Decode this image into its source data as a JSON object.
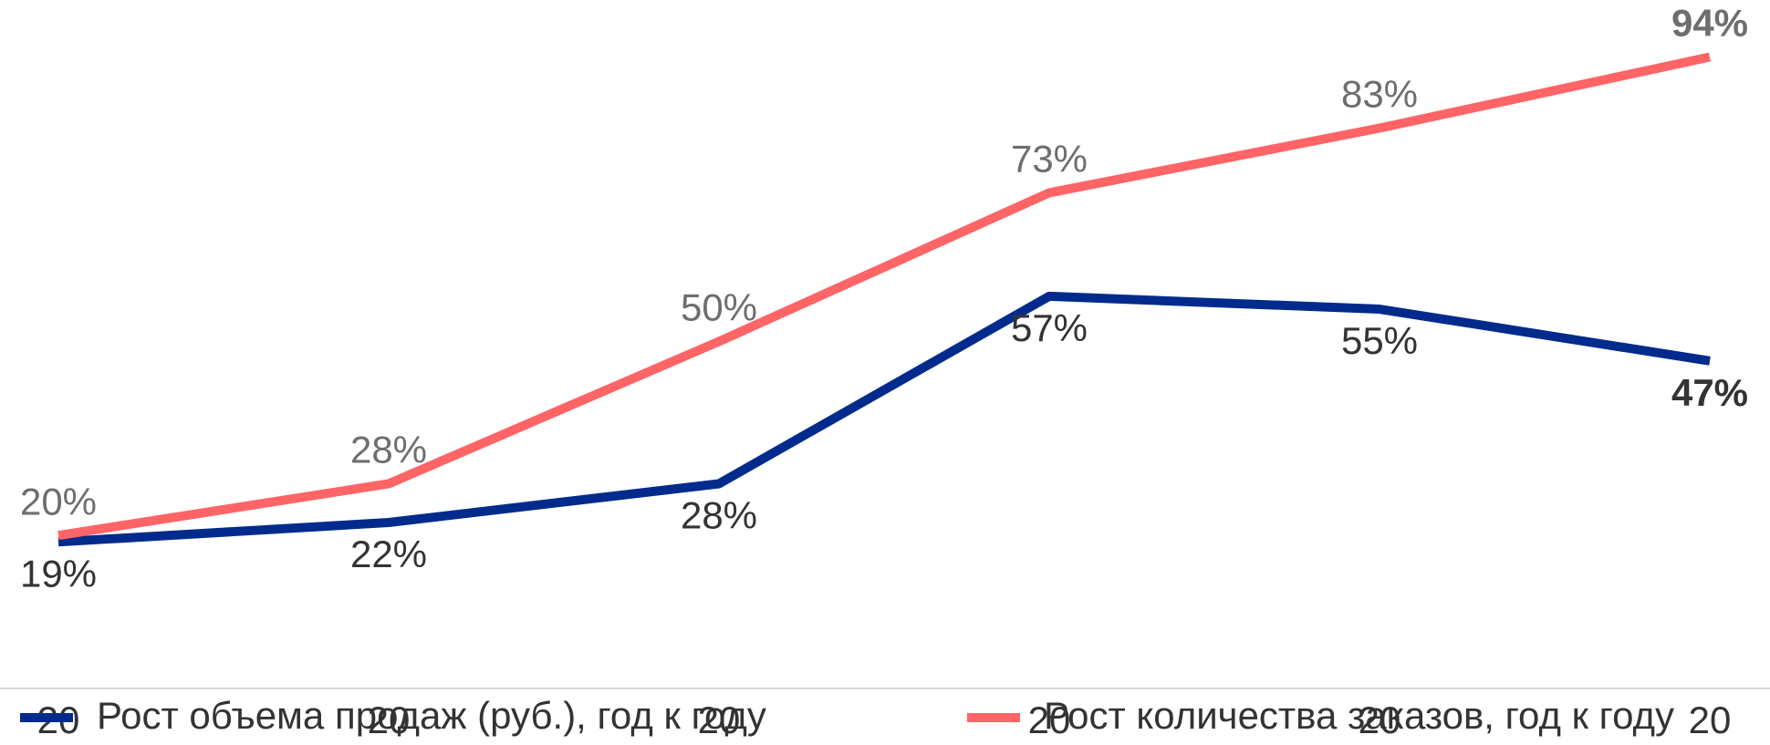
{
  "chart_data": {
    "type": "line",
    "categories": [
      "20",
      "20",
      "20",
      "20",
      "20",
      "20"
    ],
    "ylim": [
      0,
      100
    ],
    "series": [
      {
        "name": "Рост объема продаж (руб.), год к году",
        "color": "#002b8c",
        "values": [
          19,
          22,
          28,
          57,
          55,
          47
        ],
        "value_labels": [
          "19%",
          "22%",
          "28%",
          "57%",
          "55%",
          "47%"
        ]
      },
      {
        "name": "Рост количества заказов, год к году",
        "color": "#ff6467",
        "values": [
          20,
          28,
          50,
          73,
          83,
          94
        ],
        "value_labels": [
          "20%",
          "28%",
          "50%",
          "73%",
          "83%",
          "94%"
        ]
      }
    ]
  }
}
